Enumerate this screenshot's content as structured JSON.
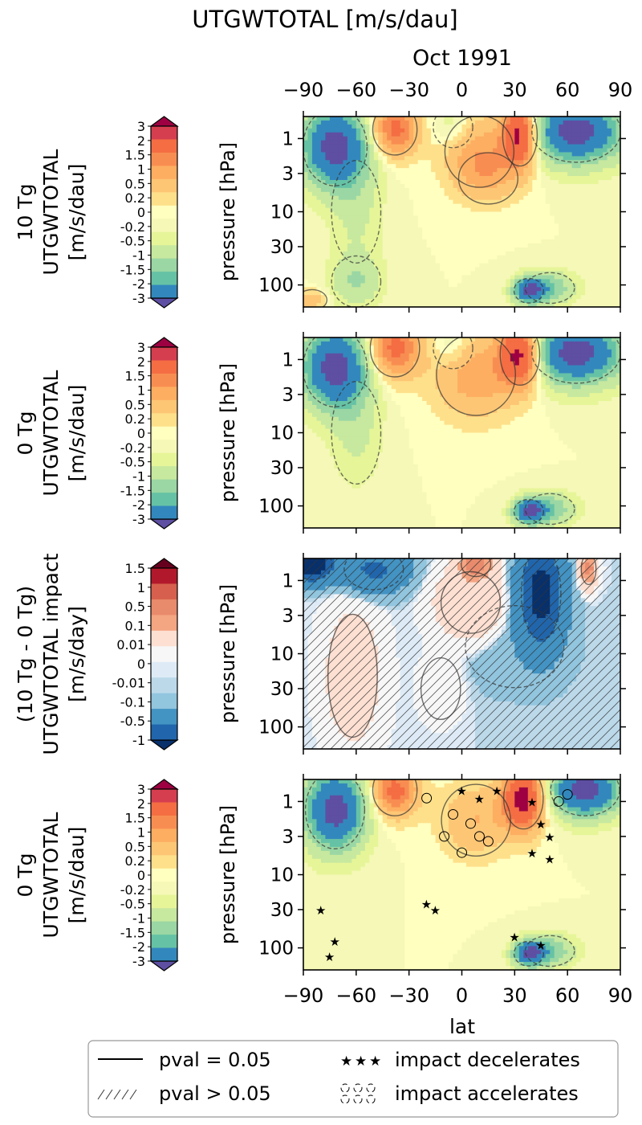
{
  "figure": {
    "title": "UTGWTOTAL [m/s/dau]",
    "subtitle": "Oct 1991",
    "xlabel": "lat"
  },
  "colormaps": {
    "spectral": [
      "#5e4fa2",
      "#3288bd",
      "#66c2a5",
      "#9ad7a4",
      "#c7e89f",
      "#e6f598",
      "#f5f8b6",
      "#ffffbf",
      "#fee08b",
      "#fdc675",
      "#fdae61",
      "#f88d52",
      "#f46d43",
      "#d53e4f",
      "#9e0142"
    ],
    "diverging": [
      "#08306b",
      "#2166ac",
      "#4393c3",
      "#92c5de",
      "#bcd9ea",
      "#deebf7",
      "#f7f7f7",
      "#fde0d2",
      "#f4a582",
      "#e88a6c",
      "#d6604d",
      "#b2182b",
      "#67001f"
    ]
  },
  "colorbars": [
    {
      "label_lines": [
        "10 Tg",
        "UTGWTOTAL",
        "[m/s/dau]"
      ],
      "ticks": [
        "3",
        "2",
        "1.5",
        "1",
        "0.5",
        "0.2",
        "0",
        "-0.2",
        "-0.5",
        "-1",
        "-1.5",
        "-2",
        "-3"
      ],
      "cmap": "spectral"
    },
    {
      "label_lines": [
        "0 Tg",
        "UTGWTOTAL",
        "[m/s/dau]"
      ],
      "ticks": [
        "3",
        "2",
        "1.5",
        "1",
        "0.5",
        "0.2",
        "0",
        "-0.2",
        "-0.5",
        "-1",
        "-1.5",
        "-2",
        "-3"
      ],
      "cmap": "spectral"
    },
    {
      "label_lines": [
        "(10 Tg - 0 Tg)",
        "UTGWTOTAL impact",
        "[m/s/day]"
      ],
      "ticks": [
        "1.5",
        "1",
        "0.5",
        "0.1",
        "0.01",
        "0",
        "-0.01",
        "-0.1",
        "-0.5",
        "-1"
      ],
      "cmap": "diverging"
    },
    {
      "label_lines": [
        "0 Tg",
        "UTGWTOTAL",
        "[m/s/dau]"
      ],
      "ticks": [
        "3",
        "2",
        "1.5",
        "1",
        "0.5",
        "0.2",
        "0",
        "-0.2",
        "-0.5",
        "-1",
        "-1.5",
        "-2",
        "-3"
      ],
      "cmap": "spectral"
    }
  ],
  "chart_data": {
    "type": "heatmap",
    "title": "UTGWTOTAL [m/s/dau]",
    "subtitle": "Oct 1991",
    "xlabel": "lat",
    "ylabel": "pressure [hPa]",
    "x_ticks": [
      "−90",
      "−60",
      "−30",
      "0",
      "30",
      "60",
      "90"
    ],
    "y_ticks": [
      "1",
      "3",
      "10",
      "30",
      "100"
    ],
    "xlim": [
      -90,
      90
    ],
    "ylim_hPa": [
      200,
      0.5
    ],
    "y_scale": "log",
    "panels": [
      {
        "name": "10 Tg",
        "levels": [
          -3,
          -2,
          -1.5,
          -1,
          -0.5,
          -0.2,
          0,
          0.2,
          0.5,
          1,
          1.5,
          2,
          3
        ],
        "cmap": "spectral",
        "features": [
          {
            "lat": -72,
            "p": 1.3,
            "value": -3.5,
            "wlat": 13,
            "wlogp": 0.38
          },
          {
            "lat": 65,
            "p": 0.8,
            "value": -3.5,
            "wlat": 18,
            "wlogp": 0.3
          },
          {
            "lat": -38,
            "p": 0.75,
            "value": 2.3,
            "wlat": 9,
            "wlogp": 0.25
          },
          {
            "lat": 33,
            "p": 0.9,
            "value": 3.5,
            "wlat": 7,
            "wlogp": 0.3
          },
          {
            "lat": 10,
            "p": 1.5,
            "value": 1.3,
            "wlat": 14,
            "wlogp": 0.35
          },
          {
            "lat": 15,
            "p": 3.5,
            "value": 0.7,
            "wlat": 12,
            "wlogp": 0.25
          },
          {
            "lat": -5,
            "p": 0.7,
            "value": -0.6,
            "wlat": 8,
            "wlogp": 0.2
          },
          {
            "lat": -60,
            "p": 10,
            "value": -0.6,
            "wlat": 10,
            "wlogp": 0.5
          },
          {
            "lat": -60,
            "p": 90,
            "value": -1.0,
            "wlat": 10,
            "wlogp": 0.25
          },
          {
            "lat": 38,
            "p": 120,
            "value": -3.0,
            "wlat": 6,
            "wlogp": 0.12
          },
          {
            "lat": 50,
            "p": 110,
            "value": -1.5,
            "wlat": 10,
            "wlogp": 0.15
          },
          {
            "lat": -85,
            "p": 160,
            "value": 0.8,
            "wlat": 6,
            "wlogp": 0.1
          }
        ]
      },
      {
        "name": "0 Tg",
        "levels": [
          -3,
          -2,
          -1.5,
          -1,
          -0.5,
          -0.2,
          0,
          0.2,
          0.5,
          1,
          1.5,
          2,
          3
        ],
        "cmap": "spectral",
        "features": [
          {
            "lat": -72,
            "p": 1.3,
            "value": -3.5,
            "wlat": 13,
            "wlogp": 0.38
          },
          {
            "lat": 65,
            "p": 0.8,
            "value": -3.5,
            "wlat": 18,
            "wlogp": 0.3
          },
          {
            "lat": -38,
            "p": 0.7,
            "value": 2.3,
            "wlat": 10,
            "wlogp": 0.28
          },
          {
            "lat": 33,
            "p": 0.85,
            "value": 3.5,
            "wlat": 8,
            "wlogp": 0.3
          },
          {
            "lat": 8,
            "p": 1.6,
            "value": 1.4,
            "wlat": 16,
            "wlogp": 0.4
          },
          {
            "lat": -5,
            "p": 0.7,
            "value": -0.6,
            "wlat": 8,
            "wlogp": 0.2
          },
          {
            "lat": -60,
            "p": 10,
            "value": -0.6,
            "wlat": 10,
            "wlogp": 0.5
          },
          {
            "lat": 38,
            "p": 120,
            "value": -3.0,
            "wlat": 6,
            "wlogp": 0.12
          },
          {
            "lat": 50,
            "p": 110,
            "value": -1.5,
            "wlat": 10,
            "wlogp": 0.15
          }
        ]
      },
      {
        "name": "(10 Tg - 0 Tg) impact",
        "levels": [
          -1,
          -0.5,
          -0.1,
          -0.01,
          0,
          0.01,
          0.1,
          0.5,
          1,
          1.5
        ],
        "cmap": "diverging",
        "hatched": "pval > 0.05",
        "features": [
          {
            "lat": -85,
            "p": 0.6,
            "value": -1.5,
            "wlat": 8,
            "wlogp": 0.15
          },
          {
            "lat": -50,
            "p": 0.7,
            "value": -0.6,
            "wlat": 12,
            "wlogp": 0.2
          },
          {
            "lat": 45,
            "p": 1.5,
            "value": -1.3,
            "wlat": 8,
            "wlogp": 0.45
          },
          {
            "lat": 8,
            "p": 0.6,
            "value": 1.4,
            "wlat": 6,
            "wlogp": 0.12
          },
          {
            "lat": 72,
            "p": 0.7,
            "value": 1.2,
            "wlat": 3,
            "wlogp": 0.15
          },
          {
            "lat": 5,
            "p": 2.0,
            "value": 0.5,
            "wlat": 12,
            "wlogp": 0.3
          },
          {
            "lat": -62,
            "p": 20,
            "value": 0.3,
            "wlat": 10,
            "wlogp": 0.6
          },
          {
            "lat": -12,
            "p": 30,
            "value": 0.08,
            "wlat": 8,
            "wlogp": 0.3
          },
          {
            "lat": 30,
            "p": 8,
            "value": -0.06,
            "wlat": 20,
            "wlogp": 0.4
          }
        ]
      },
      {
        "name": "0 Tg",
        "levels": [
          -3,
          -2,
          -1.5,
          -1,
          -0.5,
          -0.2,
          0,
          0.2,
          0.5,
          1,
          1.5,
          2,
          3
        ],
        "cmap": "spectral",
        "markers": "stars = impact decelerates, circles = impact accelerates",
        "features": [
          {
            "lat": -72,
            "p": 1.3,
            "value": -3.5,
            "wlat": 12,
            "wlogp": 0.38
          },
          {
            "lat": 70,
            "p": 0.7,
            "value": -3.5,
            "wlat": 14,
            "wlogp": 0.25
          },
          {
            "lat": -38,
            "p": 0.7,
            "value": 2.3,
            "wlat": 9,
            "wlogp": 0.25
          },
          {
            "lat": 35,
            "p": 0.9,
            "value": 3.5,
            "wlat": 8,
            "wlogp": 0.3
          },
          {
            "lat": 8,
            "p": 1.8,
            "value": 1.0,
            "wlat": 14,
            "wlogp": 0.35
          },
          {
            "lat": 38,
            "p": 120,
            "value": -3.0,
            "wlat": 6,
            "wlogp": 0.12
          },
          {
            "lat": 50,
            "p": 110,
            "value": -1.5,
            "wlat": 10,
            "wlogp": 0.15
          }
        ]
      }
    ]
  },
  "legend": {
    "items": [
      {
        "symbol": "solid-line",
        "label": "pval = 0.05"
      },
      {
        "symbol": "stars",
        "label": "impact decelerates"
      },
      {
        "symbol": "hatch",
        "label": "pval > 0.05"
      },
      {
        "symbol": "circles",
        "label": "impact accelerates"
      }
    ]
  }
}
